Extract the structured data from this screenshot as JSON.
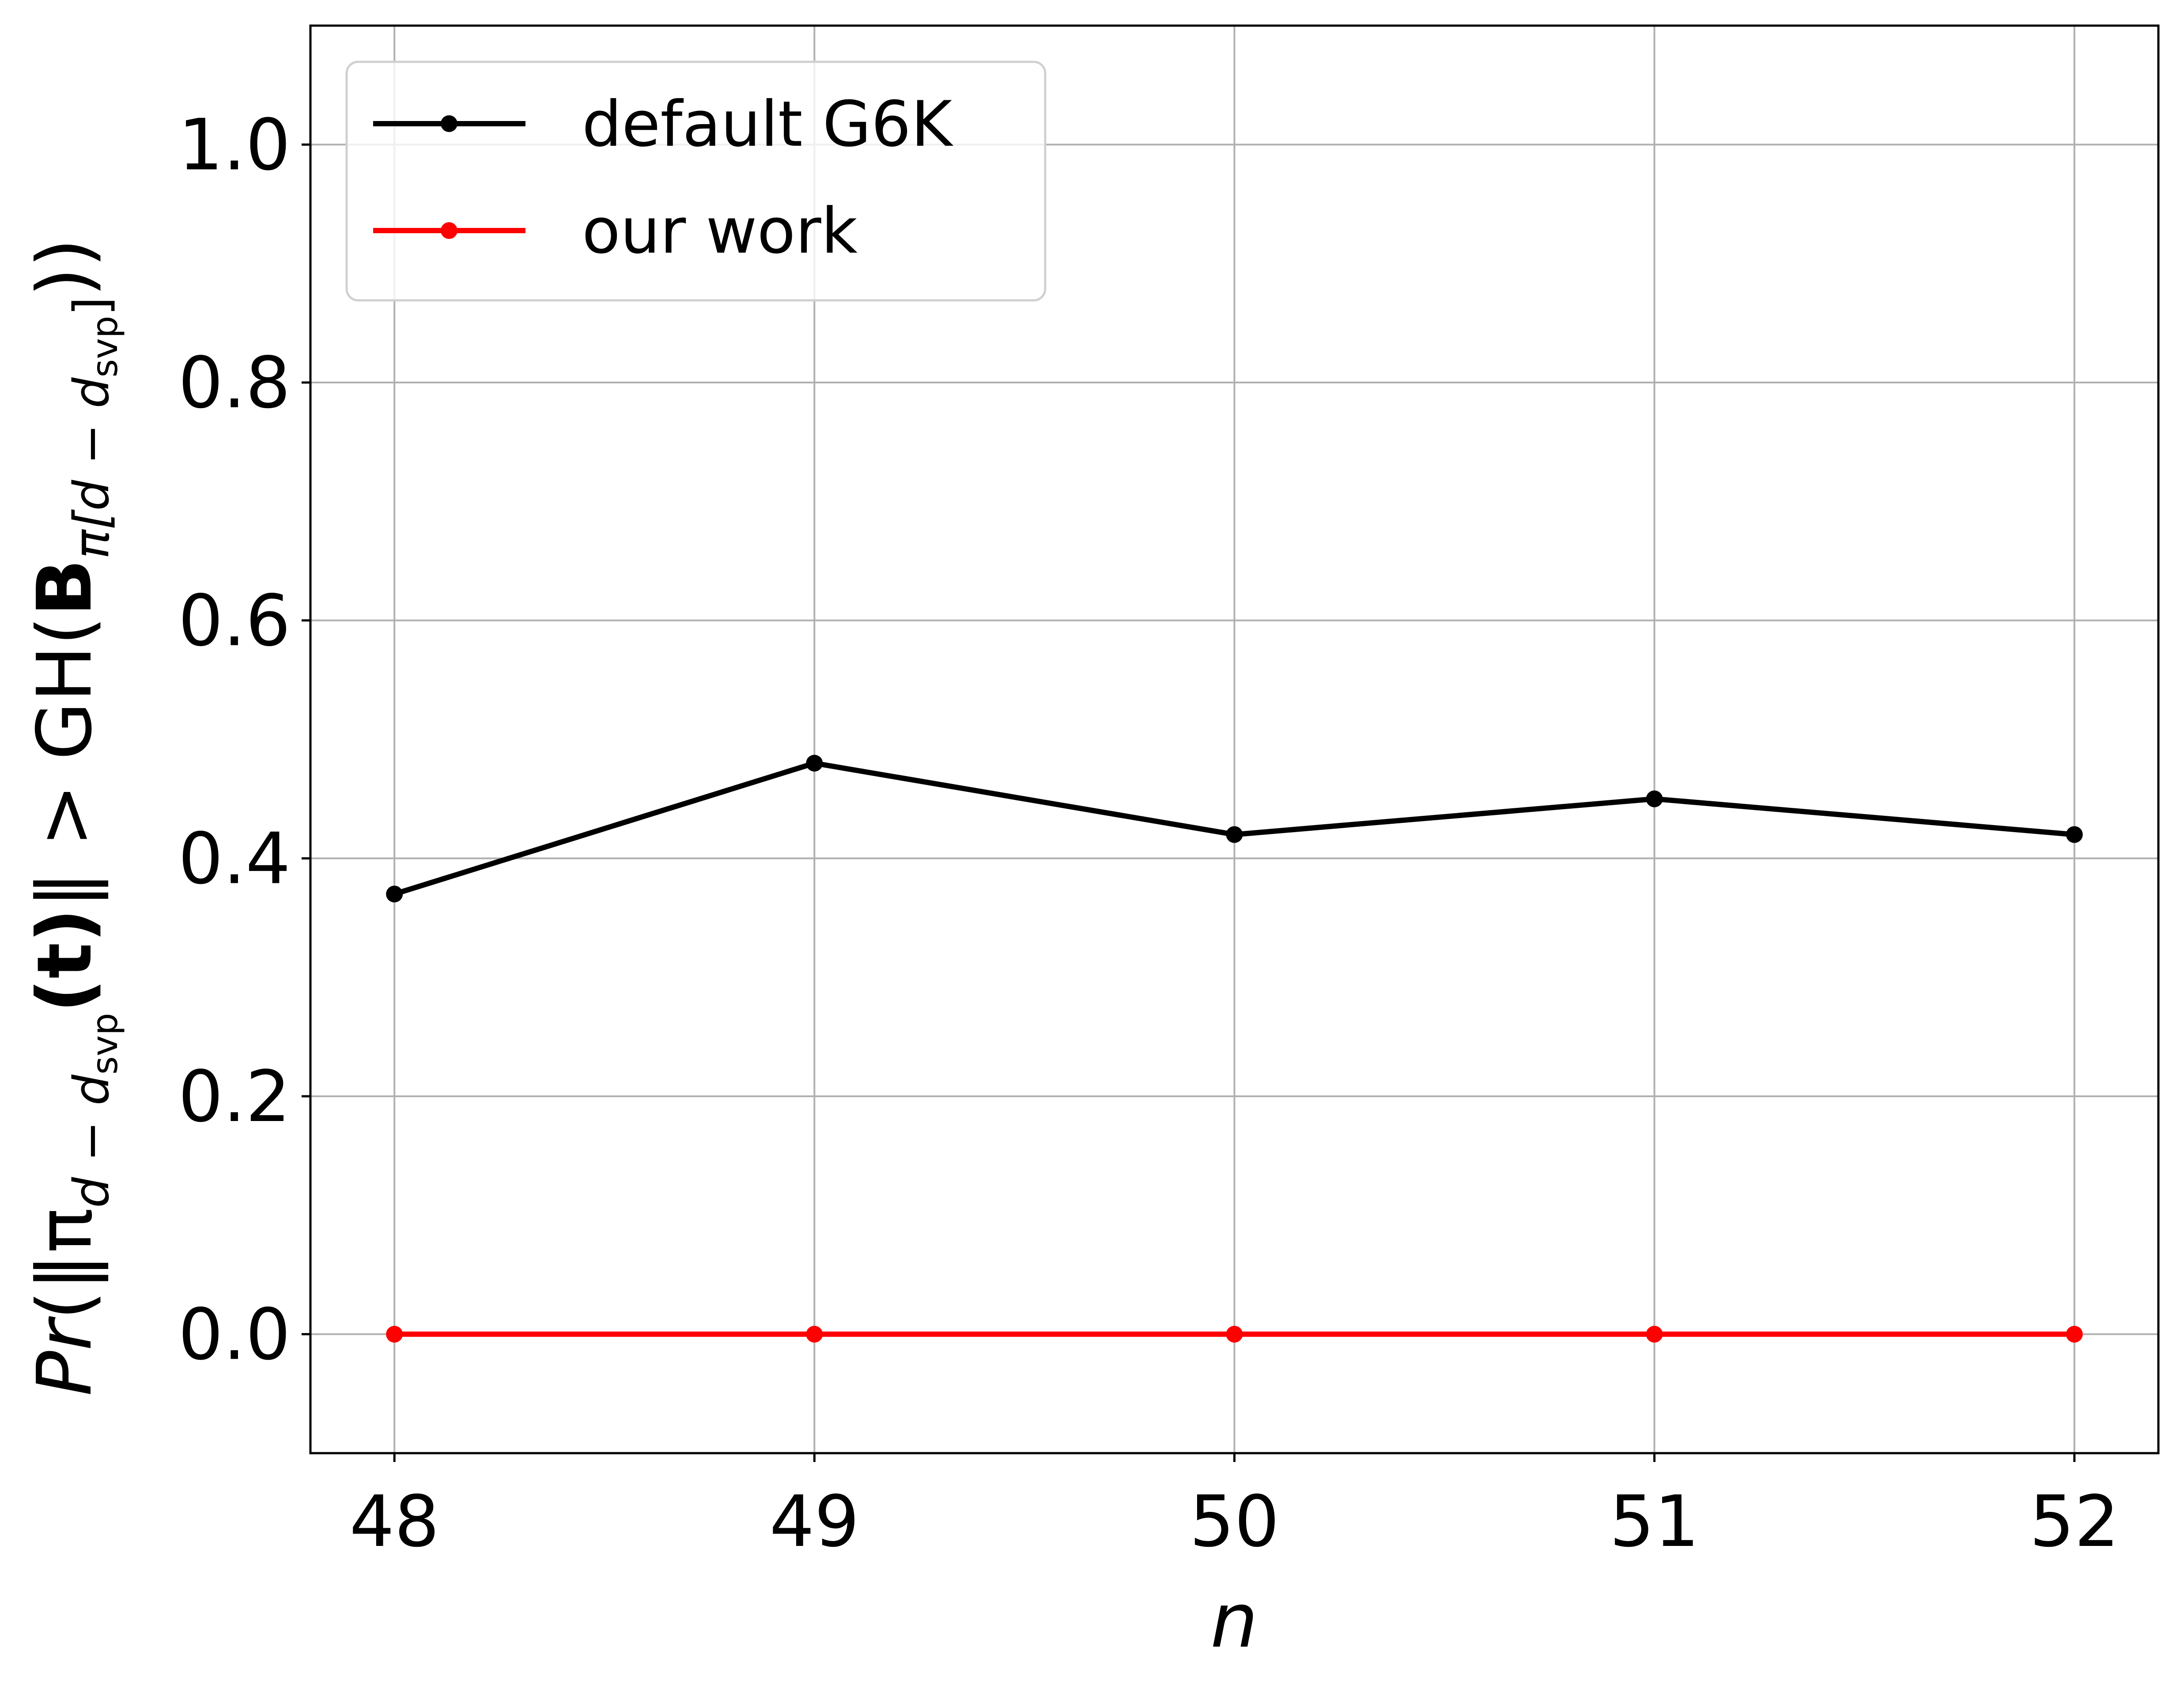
{
  "chart_data": {
    "type": "line",
    "x": [
      48,
      49,
      50,
      51,
      52
    ],
    "series": [
      {
        "name": "default G6K",
        "color": "#000000",
        "values": [
          0.37,
          0.48,
          0.42,
          0.45,
          0.42
        ]
      },
      {
        "name": "our work",
        "color": "#ff0000",
        "values": [
          0.0,
          0.0,
          0.0,
          0.0,
          0.0
        ]
      }
    ],
    "xlabel": "n",
    "ylabel_parts": {
      "pr": "Pr",
      "open": "(‖π",
      "sub1": "d − d",
      "svp": "svp",
      "t": "(t)",
      "mid": "‖ > GH(",
      "B": "B",
      "sub2": "π[d − d",
      "sub2_end": "]",
      "close": "))"
    },
    "xticks": [
      "48",
      "49",
      "50",
      "51",
      "52"
    ],
    "yticks": [
      "0.0",
      "0.2",
      "0.4",
      "0.6",
      "0.8",
      "1.0"
    ],
    "xlim": [
      47.8,
      52.2
    ],
    "ylim": [
      -0.1,
      1.1
    ],
    "grid": true,
    "legend_position": "upper-left"
  }
}
